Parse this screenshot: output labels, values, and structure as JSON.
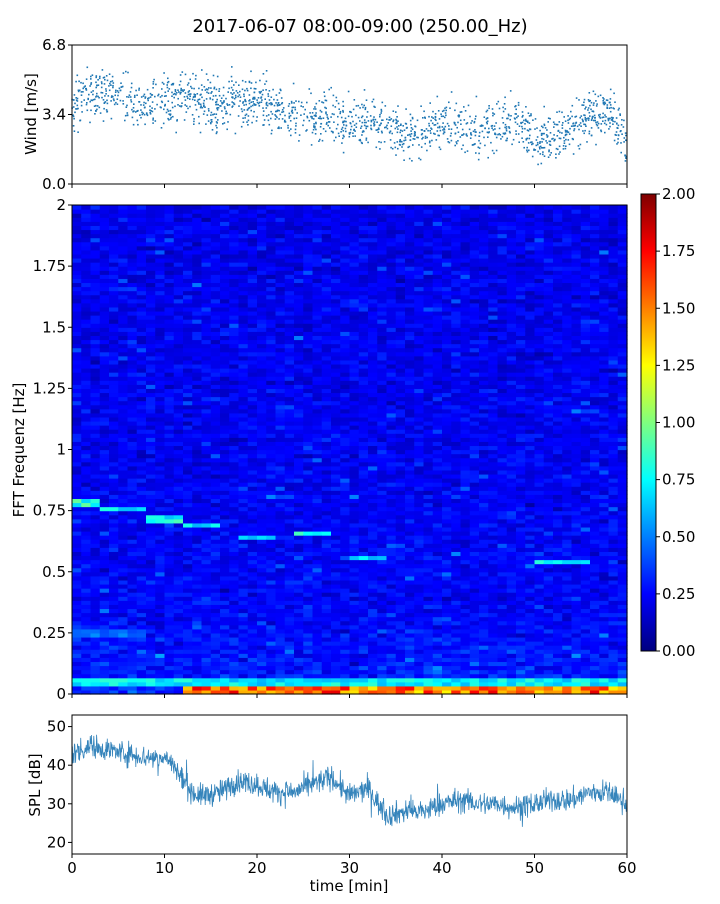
{
  "title": "2017-06-07 08:00-09:00 (250.00_Hz)",
  "chart_data": [
    {
      "type": "scatter",
      "name": "wind",
      "title": "",
      "xlabel": "",
      "ylabel": "Wind [m/s]",
      "xlim": [
        0,
        60
      ],
      "ylim": [
        0,
        6.8
      ],
      "yticks": [
        0,
        3.4,
        6.8
      ],
      "ytick_labels": [
        "0.0",
        "3.4",
        "6.8"
      ],
      "color": "#1f77b4",
      "grid": false,
      "x": [
        0,
        2,
        4,
        6,
        8,
        10,
        12,
        14,
        16,
        18,
        20,
        22,
        24,
        26,
        28,
        30,
        32,
        34,
        36,
        38,
        40,
        42,
        44,
        46,
        48,
        50,
        52,
        54,
        56,
        58,
        60
      ],
      "y": [
        3.8,
        4.3,
        4.5,
        4.2,
        3.8,
        3.9,
        4.2,
        4.1,
        3.9,
        4.0,
        4.2,
        3.7,
        3.4,
        3.1,
        3.3,
        2.8,
        3.2,
        2.8,
        2.4,
        2.6,
        2.9,
        2.7,
        2.6,
        3.0,
        3.2,
        2.3,
        2.3,
        2.9,
        3.4,
        3.6,
        1.8
      ]
    },
    {
      "type": "heatmap",
      "name": "spectrogram",
      "title": "",
      "xlabel": "",
      "ylabel": "FFT Frequenz [Hz]",
      "xlim": [
        0,
        60
      ],
      "ylim": [
        0,
        2
      ],
      "yticks": [
        0,
        0.25,
        0.5,
        0.75,
        1,
        1.25,
        1.5,
        1.75,
        2
      ],
      "ytick_labels": [
        "0",
        "0.25",
        "0.5",
        "0.75",
        "1",
        "1.25",
        "1.5",
        "1.75",
        "2"
      ],
      "colormap": "jet",
      "colorbar": {
        "range": [
          0,
          2
        ],
        "ticks": [
          0,
          0.25,
          0.5,
          0.75,
          1,
          1.25,
          1.5,
          1.75,
          2
        ],
        "tick_labels": [
          "0.00",
          "0.25",
          "0.50",
          "0.75",
          "1.00",
          "1.25",
          "1.50",
          "1.75",
          "2.00"
        ]
      },
      "colormap_stops": [
        "#00007f",
        "#0000ff",
        "#007fff",
        "#00ffff",
        "#7fff7f",
        "#ffff00",
        "#ff7f00",
        "#ff0000",
        "#7f0000"
      ],
      "background_level": 0.2,
      "features": [
        {
          "t0": 0,
          "t1": 3,
          "f": 0.78,
          "level": 0.95
        },
        {
          "t0": 3,
          "t1": 8,
          "f": 0.76,
          "level": 0.85
        },
        {
          "t0": 8,
          "t1": 12,
          "f": 0.72,
          "level": 0.9
        },
        {
          "t0": 12,
          "t1": 16,
          "f": 0.69,
          "level": 0.8
        },
        {
          "t0": 18,
          "t1": 22,
          "f": 0.64,
          "level": 0.7
        },
        {
          "t0": 24,
          "t1": 28,
          "f": 0.66,
          "level": 0.9
        },
        {
          "t0": 30,
          "t1": 34,
          "f": 0.56,
          "level": 0.8
        },
        {
          "t0": 50,
          "t1": 56,
          "f": 0.54,
          "level": 0.85
        },
        {
          "t0": 0,
          "t1": 8,
          "f": 0.25,
          "level": 0.55
        },
        {
          "t0": 12,
          "t1": 60,
          "f": 0.015,
          "level": 1.8
        },
        {
          "t0": 0,
          "t1": 60,
          "f": 0.05,
          "level": 0.85
        }
      ]
    },
    {
      "type": "line",
      "name": "spl",
      "title": "",
      "xlabel": "time [min]",
      "ylabel": "SPL [dB]",
      "xlim": [
        0,
        60
      ],
      "ylim": [
        17,
        53
      ],
      "xticks": [
        0,
        10,
        20,
        30,
        40,
        50,
        60
      ],
      "xtick_labels": [
        "0",
        "10",
        "20",
        "30",
        "40",
        "50",
        "60"
      ],
      "yticks": [
        20,
        30,
        40,
        50
      ],
      "ytick_labels": [
        "20",
        "30",
        "40",
        "50"
      ],
      "color": "#1f77b4",
      "grid": false,
      "x": [
        0,
        2,
        4,
        6,
        8,
        10,
        11,
        12,
        13,
        14,
        16,
        18,
        20,
        22,
        24,
        26,
        28,
        30,
        32,
        34,
        36,
        38,
        40,
        42,
        44,
        46,
        48,
        50,
        52,
        54,
        56,
        58,
        60
      ],
      "y": [
        43,
        45,
        44,
        43,
        42,
        42,
        40,
        36,
        33,
        32,
        33,
        36,
        35,
        33,
        33,
        35,
        37,
        32,
        34,
        27,
        28,
        28,
        30,
        31,
        30,
        30,
        29,
        30,
        31,
        31,
        33,
        33,
        30
      ]
    }
  ]
}
